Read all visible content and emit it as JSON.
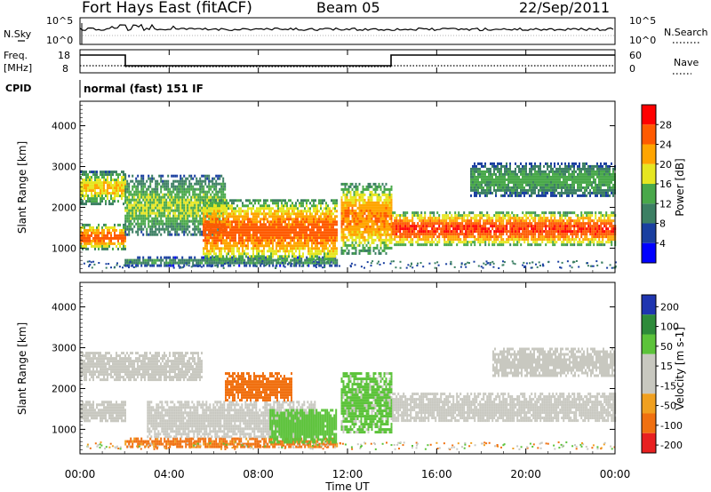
{
  "header": {
    "station": "Fort Hays East (fitACF)",
    "beam": "Beam 05",
    "date": "22/Sep/2011"
  },
  "noise_panel": {
    "left_label": "N.Sky",
    "right_label": "N.Search",
    "left_ticks": [
      "10^5",
      "10^0"
    ],
    "right_ticks": [
      "10^5",
      "10^0"
    ]
  },
  "freq_panel": {
    "left_label_1": "Freq.",
    "left_label_2": "[MHz]",
    "right_label": "Nave",
    "left_ticks": [
      "18",
      "8"
    ],
    "right_ticks": [
      "60",
      "0"
    ]
  },
  "cpid": {
    "label": "CPID",
    "text": "normal (fast) 151 IF"
  },
  "x_axis": {
    "label": "Time UT",
    "ticks": [
      "00:00",
      "04:00",
      "08:00",
      "12:00",
      "16:00",
      "20:00",
      "00:00"
    ]
  },
  "colors": {
    "power": [
      "#0000ff",
      "#1a3fa0",
      "#3c7f63",
      "#49a84a",
      "#e6e621",
      "#ffa500",
      "#ff5a00",
      "#ff0000"
    ],
    "velocity": [
      "#1f35b0",
      "#2e8b3a",
      "#5cc33a",
      "#c8c8c0",
      "#c8c8c0",
      "#f0a020",
      "#f07010",
      "#e82020"
    ]
  },
  "chart_data": [
    {
      "type": "heatmap",
      "title": "",
      "xlabel": "Time UT",
      "ylabel": "Slant Range [km]",
      "xlim": [
        0,
        24
      ],
      "ylim": [
        400,
        4600
      ],
      "yticks": [
        "1000",
        "2000",
        "3000",
        "4000"
      ],
      "colorbar_label": "Power [dB]",
      "colorbar_ticks": [
        "4",
        "8",
        "12",
        "16",
        "20",
        "24",
        "28"
      ],
      "bands": [
        {
          "t_start": 0.0,
          "t_end": 2.0,
          "range_low": 1000,
          "range_high": 1600,
          "peak_db": 26
        },
        {
          "t_start": 0.0,
          "t_end": 2.0,
          "range_low": 2100,
          "range_high": 2900,
          "peak_db": 20
        },
        {
          "t_start": 2.0,
          "t_end": 6.5,
          "range_low": 1300,
          "range_high": 2800,
          "peak_db": 16
        },
        {
          "t_start": 2.0,
          "t_end": 11.5,
          "range_low": 600,
          "range_high": 800,
          "peak_db": 12
        },
        {
          "t_start": 5.5,
          "t_end": 11.5,
          "range_low": 700,
          "range_high": 2200,
          "peak_db": 26
        },
        {
          "t_start": 11.7,
          "t_end": 14.0,
          "range_low": 900,
          "range_high": 2600,
          "peak_db": 24
        },
        {
          "t_start": 14.0,
          "t_end": 24.0,
          "range_low": 1100,
          "range_high": 1900,
          "peak_db": 28
        },
        {
          "t_start": 17.5,
          "t_end": 24.0,
          "range_low": 2300,
          "range_high": 3100,
          "peak_db": 14
        }
      ]
    },
    {
      "type": "heatmap",
      "title": "",
      "xlabel": "Time UT",
      "ylabel": "Slant Range [km]",
      "xlim": [
        0,
        24
      ],
      "ylim": [
        400,
        4600
      ],
      "yticks": [
        "1000",
        "2000",
        "3000",
        "4000"
      ],
      "colorbar_label": "Velocity [m s-1]",
      "colorbar_ticks": [
        "200",
        "100",
        "50",
        "15",
        "-15",
        "-50",
        "-100",
        "-200"
      ],
      "bands": [
        {
          "t_start": 0.0,
          "t_end": 2.0,
          "range_low": 1200,
          "range_high": 1700,
          "velocity": 0
        },
        {
          "t_start": 0.0,
          "t_end": 5.5,
          "range_low": 2200,
          "range_high": 2900,
          "velocity": 0
        },
        {
          "t_start": 2.0,
          "t_end": 11.5,
          "range_low": 600,
          "range_high": 800,
          "velocity": -40
        },
        {
          "t_start": 3.0,
          "t_end": 10.5,
          "range_low": 800,
          "range_high": 1700,
          "velocity": 5
        },
        {
          "t_start": 6.5,
          "t_end": 9.5,
          "range_low": 1700,
          "range_high": 2400,
          "velocity": -60
        },
        {
          "t_start": 8.5,
          "t_end": 11.5,
          "range_low": 700,
          "range_high": 1500,
          "velocity": 60
        },
        {
          "t_start": 11.7,
          "t_end": 14.0,
          "range_low": 900,
          "range_high": 2400,
          "velocity": 40
        },
        {
          "t_start": 14.0,
          "t_end": 24.0,
          "range_low": 1200,
          "range_high": 1900,
          "velocity": 0
        },
        {
          "t_start": 18.5,
          "t_end": 24.0,
          "range_low": 2300,
          "range_high": 3000,
          "velocity": 0
        }
      ]
    }
  ]
}
